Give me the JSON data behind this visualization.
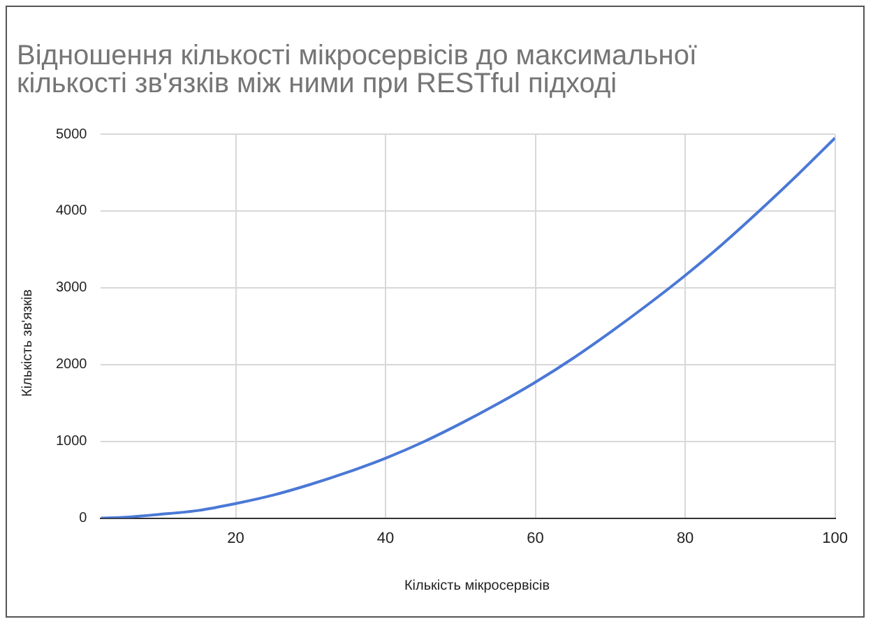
{
  "chart_data": {
    "type": "line",
    "title": "Відношення кількості мікросервісів до максимальної кількості зв'язків між ними при RESTful підході",
    "xlabel": "Кількість мікросервісів",
    "ylabel": "Кількість зв'язків",
    "x": [
      2,
      5,
      10,
      15,
      20,
      25,
      30,
      35,
      40,
      45,
      50,
      55,
      60,
      65,
      70,
      75,
      80,
      85,
      90,
      95,
      100
    ],
    "series": [
      {
        "color": "#4a78d6",
        "values": [
          0,
          10,
          50,
          100,
          190,
          300,
          440,
          600,
          780,
          990,
          1230,
          1490,
          1770,
          2080,
          2420,
          2780,
          3160,
          3570,
          4010,
          4470,
          4950
        ]
      }
    ],
    "xlim": [
      2,
      100
    ],
    "xticks": [
      20,
      40,
      60,
      80,
      100
    ],
    "ylim": [
      0,
      5000
    ],
    "yticks": [
      0,
      1000,
      2000,
      3000,
      4000,
      5000
    ],
    "grid": true,
    "legend": false,
    "marker": "none",
    "line_style": "solid"
  }
}
